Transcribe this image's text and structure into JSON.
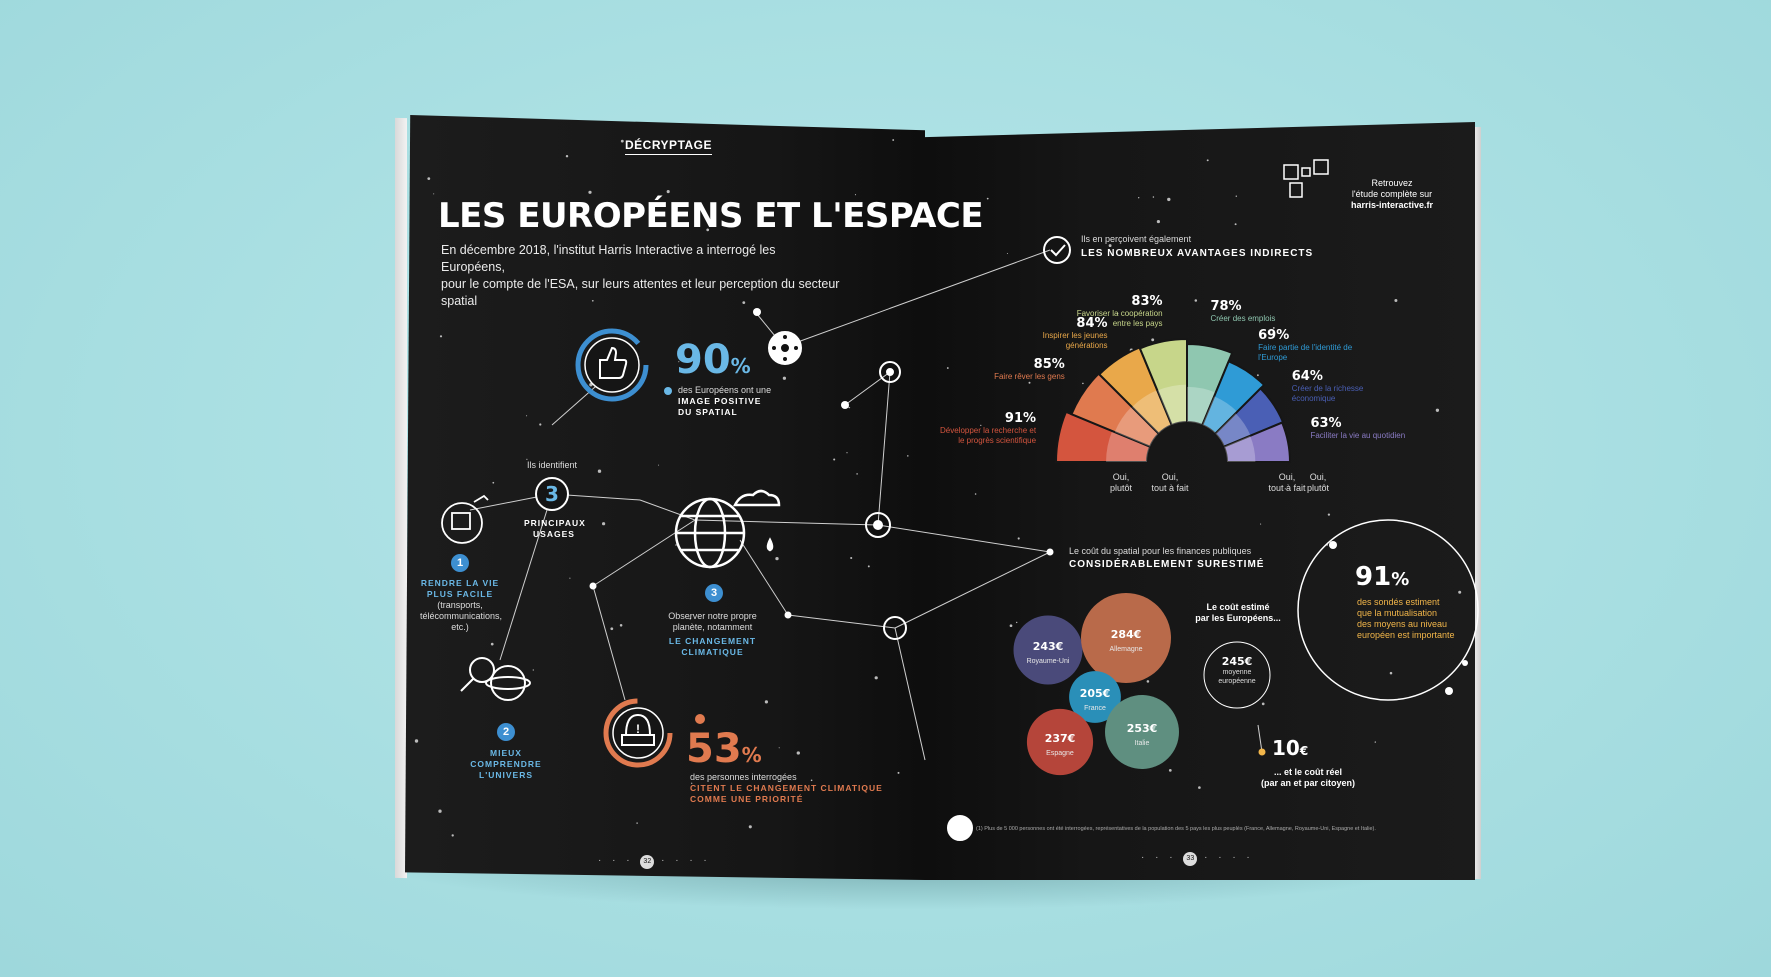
{
  "left": {
    "tag": "DÉCRYPTAGE",
    "title": "LES EUROPÉENS ET L'ESPACE",
    "intro_line1": "En décembre 2018, l'institut Harris Interactive a interrogé les Européens,",
    "intro_line2": "pour le compte de l'ESA, sur leurs attentes et leur perception du secteur spatial",
    "stat90": {
      "value": "90",
      "unit": "%",
      "line1": "des Européens ont une",
      "line2": "IMAGE POSITIVE",
      "line3": "DU SPATIAL"
    },
    "identify": "Ils identifient",
    "usages": {
      "value": "3",
      "line1": "PRINCIPAUX",
      "line2": "USAGES"
    },
    "usage1": {
      "num": "1",
      "line1": "RENDRE LA VIE",
      "line2": "PLUS FACILE",
      "line3": "(transports,",
      "line4": "télécommunications,",
      "line5": "etc.)"
    },
    "usage2": {
      "num": "2",
      "line1": "MIEUX",
      "line2": "COMPRENDRE",
      "line3": "L'UNIVERS"
    },
    "usage3": {
      "num": "3",
      "line1": "Observer notre propre",
      "line2": "planète, notamment",
      "line3": "LE CHANGEMENT",
      "line4": "CLIMATIQUE"
    },
    "stat53": {
      "value": "53",
      "unit": "%",
      "line1": "des personnes interrogées",
      "line2": "CITENT LE CHANGEMENT CLIMATIQUE",
      "line3": "COMME UNE PRIORITÉ"
    },
    "page_num": "32"
  },
  "right": {
    "retrouvez_line1": "Retrouvez",
    "retrouvez_line2": "l'étude complète sur",
    "retrouvez_line3": "harris-interactive.fr",
    "advantages_line1": "Ils en perçoivent également",
    "advantages_line2": "LES NOMBREUX AVANTAGES INDIRECTS",
    "cost_line1": "Le coût du spatial pour les finances publiques",
    "cost_line2": "CONSIDÉRABLEMENT SURESTIMÉ",
    "estimate_line1": "Le coût estimé",
    "estimate_line2": "par les Européens...",
    "average": {
      "value": "245€",
      "line1": "moyenne",
      "line2": "européenne"
    },
    "real": {
      "value": "10",
      "unit": "€",
      "line1": "... et le coût réel",
      "line2": "(par an et par citoyen)"
    },
    "stat91": {
      "value": "91",
      "unit": "%",
      "line1": "des sondés estiment",
      "line2": "que la mutualisation",
      "line3": "des moyens au niveau",
      "line4": "européen est importante"
    },
    "footnote": "(1) Plus de 5 000 personnes ont été interrogées, représentatives de la population des 5 pays les plus peuplés (France, Allemagne, Royaume-Uni, Espagne et Italie).",
    "page_num": "33",
    "axis_labels": {
      "oui_plutot_l": "Oui,",
      "oui_plutot_l2": "plutôt",
      "tout_l": "Oui,",
      "tout_l2": "tout à fait",
      "tout_r": "Oui,",
      "tout_r2": "tout à fait",
      "oui_plutot_r": "Oui,",
      "oui_plutot_r2": "plutôt"
    }
  },
  "chart_data": [
    {
      "type": "pie",
      "title": "LES NOMBREUX AVANTAGES INDIRECTS",
      "categories": [
        "Développer la recherche et le progrès scientifique",
        "Faire rêver les gens",
        "Inspirer les jeunes générations",
        "Favoriser la coopération entre les pays",
        "Créer des emplois",
        "Faire partie de l'identité de l'Europe",
        "Créer de la richesse économique",
        "Faciliter la vie au quotidien"
      ],
      "values": [
        91,
        85,
        84,
        83,
        78,
        69,
        64,
        63
      ],
      "labels": [
        "91%",
        "85%",
        "84%",
        "83%",
        "78%",
        "69%",
        "64%",
        "63%"
      ],
      "colors": [
        "#d4553e",
        "#e07a4f",
        "#e9a84a",
        "#c7d68a",
        "#8fc7b0",
        "#2f9bd6",
        "#4a5fb5",
        "#8a7bc4"
      ]
    },
    {
      "type": "scatter",
      "title": "Le coût estimé par les Européens...",
      "categories": [
        "Royaume-Uni",
        "Allemagne",
        "France",
        "Espagne",
        "Italie"
      ],
      "values": [
        243,
        284,
        205,
        237,
        253
      ],
      "labels": [
        "243€",
        "284€",
        "205€",
        "237€",
        "253€"
      ],
      "colors": [
        "#4a4a7a",
        "#b96a4a",
        "#2a8fb8",
        "#b5453a",
        "#5f8f80"
      ]
    }
  ]
}
